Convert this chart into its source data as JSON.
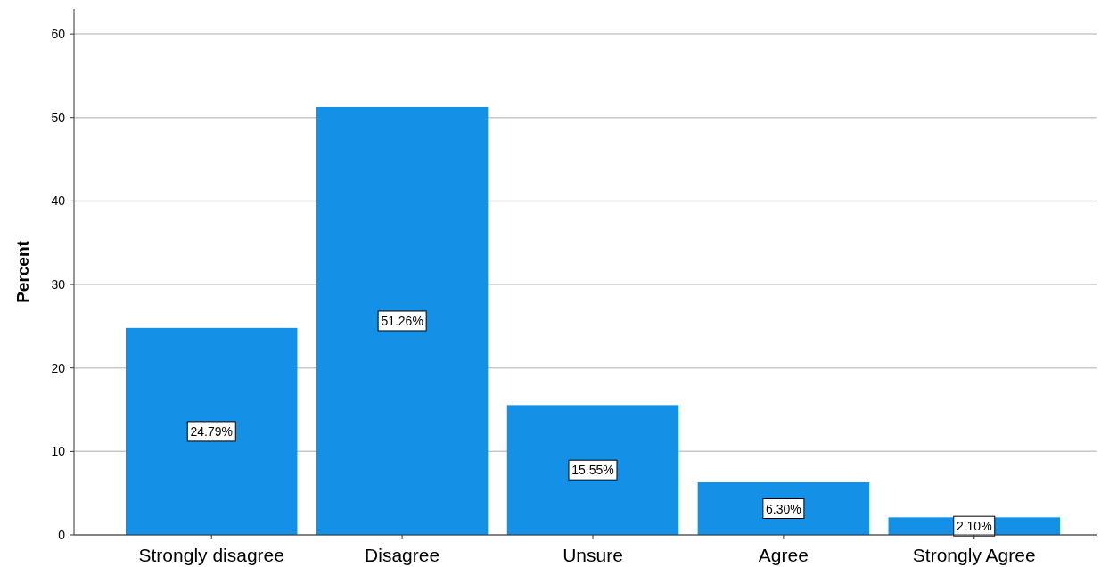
{
  "chart_data": {
    "type": "bar",
    "ylabel": "Percent",
    "categories": [
      "Strongly disagree",
      "Disagree",
      "Unsure",
      "Agree",
      "Strongly Agree"
    ],
    "values": [
      24.79,
      51.26,
      15.55,
      6.3,
      2.1
    ],
    "value_labels": [
      "24.79%",
      "51.26%",
      "15.55%",
      "6.30%",
      "2.10%"
    ],
    "color": "#1490e6",
    "ylim": [
      0,
      63
    ],
    "yticks": [
      0,
      10,
      20,
      30,
      40,
      50,
      60
    ],
    "grid": "y"
  }
}
